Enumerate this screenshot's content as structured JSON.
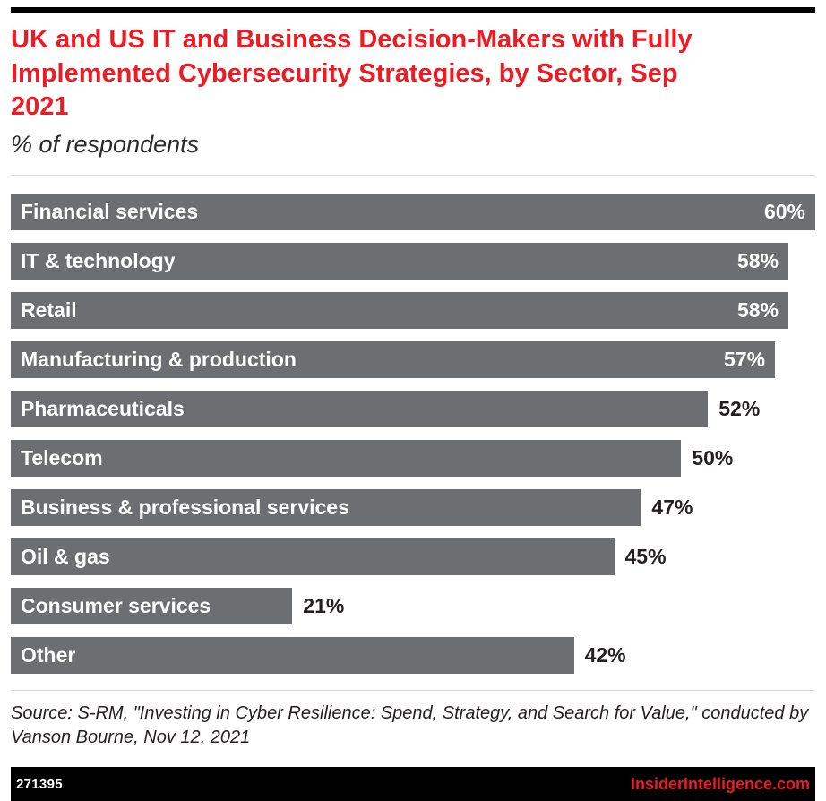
{
  "chart_data": {
    "type": "bar",
    "orientation": "horizontal",
    "title": "UK and US IT and Business Decision-Makers with Fully Implemented Cybersecurity Strategies, by Sector, Sep 2021",
    "subtitle": "% of respondents",
    "categories": [
      "Financial services",
      "IT & technology",
      "Retail",
      "Manufacturing & production",
      "Pharmaceuticals",
      "Telecom",
      "Business & professional services",
      "Oil & gas",
      "Consumer services",
      "Other"
    ],
    "values": [
      60,
      58,
      58,
      57,
      52,
      50,
      47,
      45,
      21,
      42
    ],
    "value_suffix": "%",
    "xlim": [
      0,
      60
    ],
    "bar_color": "#6d6e71",
    "grid": false,
    "legend": "none",
    "value_labels": "end-of-bar"
  },
  "source_note": "Source: S-RM, \"Investing in Cyber Resilience: Spend, Strategy, and Search for Value,\" conducted by Vanson Bourne, Nov 12, 2021",
  "footer": {
    "chart_id": "271395",
    "site_label": "InsiderIntelligence.com"
  },
  "colors": {
    "accent_red": "#ec1c24",
    "bar_gray": "#6d6e71",
    "rule_black": "#000000",
    "text_dark": "#231f20"
  }
}
